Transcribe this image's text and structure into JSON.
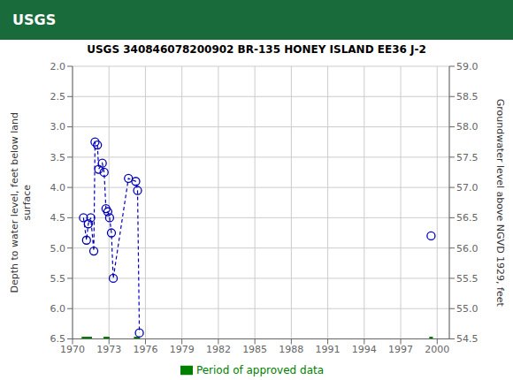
{
  "chart_data": {
    "type": "line",
    "title": "USGS 340846078200902 BR-135 HONEY ISLAND EE36 J-2",
    "annotations": [
      {
        "text": "USGS",
        "color": "#1A6B3C"
      }
    ],
    "ylabel": "Depth to water level, feet below land\nsurface",
    "y2label": "Groundwater level above NGVD 1929, feet",
    "x": [
      1970.9,
      1971.15,
      1971.3,
      1971.5,
      1971.75,
      1971.85,
      1972.05,
      1972.15,
      1972.45,
      1972.6,
      1972.75,
      1972.9,
      1973.05,
      1973.2,
      1973.35,
      1974.6,
      1975.2,
      1975.35,
      1975.5,
      1999.5
    ],
    "xlim": [
      1970,
      2001
    ],
    "xticks": [
      1970,
      1973,
      1976,
      1979,
      1982,
      1985,
      1988,
      1991,
      1994,
      1997,
      2000
    ],
    "ylim": [
      6.5,
      2.0
    ],
    "yticks": [
      {
        "value": 2.0,
        "label": "2.0"
      },
      2.5,
      {
        "value": 3.0,
        "label": "3.0"
      },
      3.5,
      {
        "value": 4.0,
        "label": "4.0"
      },
      4.5,
      {
        "value": 5.0,
        "label": "5.0"
      },
      5.5,
      {
        "value": 6.0,
        "label": "6.0"
      },
      6.5
    ],
    "y2lim": [
      54.5,
      59.0
    ],
    "y2ticks": [
      54.5,
      {
        "value": 55.0,
        "label": "55.0"
      },
      55.5,
      {
        "value": 56.0,
        "label": "56.0"
      },
      56.5,
      {
        "value": 57.0,
        "label": "57.0"
      },
      57.5,
      {
        "value": 58.0,
        "label": "58.0"
      },
      58.5,
      {
        "value": 59.0,
        "label": "59.0"
      }
    ],
    "grid": true,
    "legend": "bottom",
    "series": [
      {
        "type": "line",
        "line_style": "dashed",
        "color": "#0000BB",
        "values": [
          4.5,
          4.87,
          4.6,
          4.5,
          5.05,
          3.25,
          3.3,
          3.7,
          3.6,
          3.75,
          4.35,
          4.4,
          4.5,
          4.75,
          5.5,
          3.85,
          3.9,
          4.05,
          6.4,
          null
        ]
      },
      {
        "type": "scatter",
        "marker": "circle",
        "color": "#0000BB",
        "values": [
          4.5,
          4.87,
          4.6,
          4.5,
          5.05,
          3.25,
          3.3,
          3.7,
          3.6,
          3.75,
          4.35,
          4.4,
          4.5,
          4.75,
          5.5,
          3.85,
          3.9,
          4.05,
          6.4,
          4.8
        ]
      },
      {
        "name": "Period of approved data",
        "type": "segments",
        "color": "#008000",
        "ranges": [
          [
            1970.75,
            1971.6
          ],
          [
            1972.55,
            1973.05
          ],
          [
            1975.05,
            1975.55
          ],
          [
            1999.35,
            1999.65
          ]
        ],
        "y": 6.5
      }
    ]
  }
}
